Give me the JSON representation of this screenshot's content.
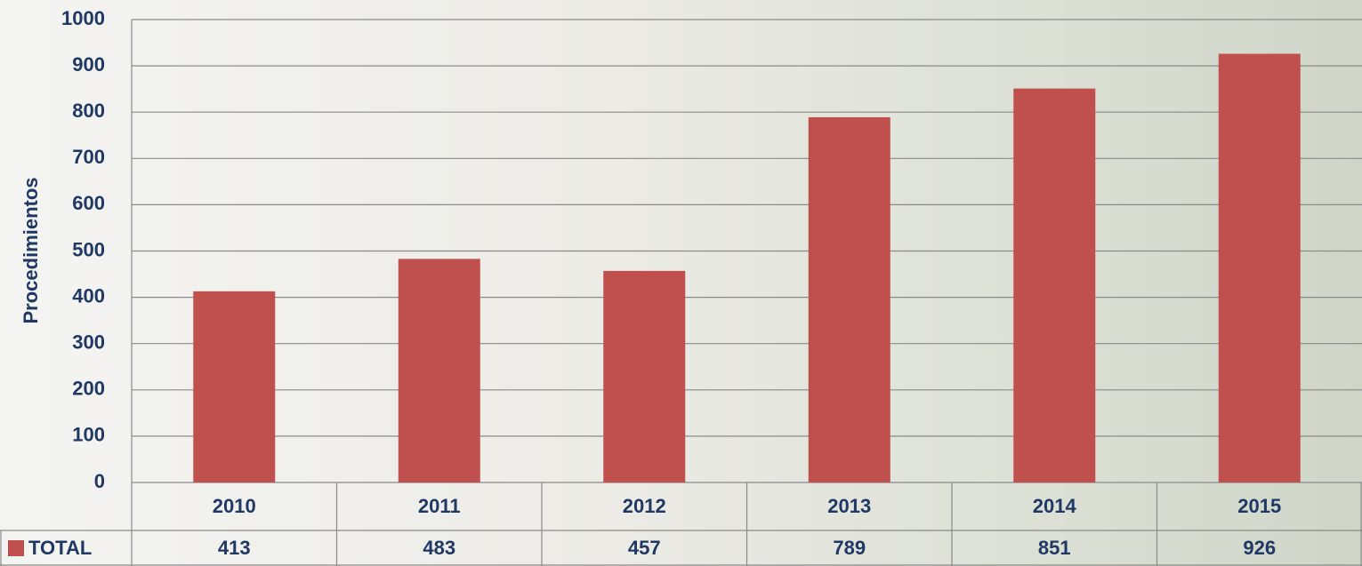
{
  "chart_data": {
    "type": "bar",
    "y_axis_label": "Procedimientos",
    "categories": [
      "2010",
      "2011",
      "2012",
      "2013",
      "2014",
      "2015"
    ],
    "series": [
      {
        "name": "TOTAL",
        "color": "#c0504d",
        "values": [
          413,
          483,
          457,
          789,
          851,
          926
        ]
      }
    ],
    "ylim": [
      0,
      1000
    ],
    "yticks": [
      0,
      100,
      200,
      300,
      400,
      500,
      600,
      700,
      800,
      900,
      1000
    ],
    "grid": true,
    "data_table": true
  }
}
